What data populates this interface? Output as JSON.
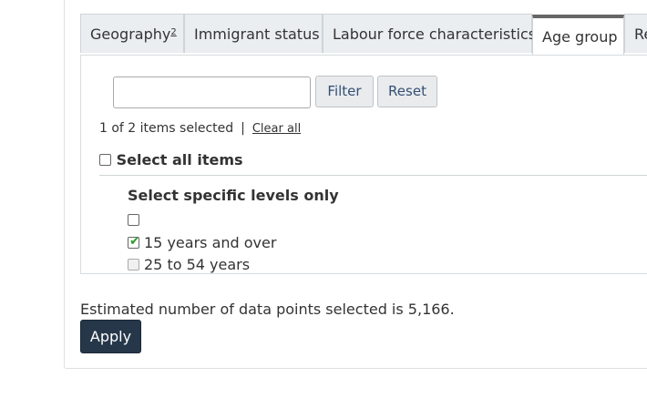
{
  "tabs": [
    {
      "label": "Geography",
      "sup": "2"
    },
    {
      "label": "Immigrant status"
    },
    {
      "label": "Labour force characteristics"
    },
    {
      "label": "Age group"
    },
    {
      "label": "Re"
    }
  ],
  "filter": {
    "input_value": "",
    "filter_label": "Filter",
    "reset_label": "Reset"
  },
  "selection": {
    "status": "1 of 2 items selected",
    "separator": "|",
    "clear_all": "Clear all"
  },
  "select_all": {
    "label": "Select all items",
    "checked": false
  },
  "levels": {
    "heading": "Select specific levels only",
    "items": [
      {
        "label": "",
        "checked": false
      },
      {
        "label": "15 years and over",
        "checked": true
      },
      {
        "label": "25 to 54 years",
        "checked": false,
        "disabled": true
      }
    ]
  },
  "estimate_text": "Estimated number of data points selected is 5,166.",
  "apply_label": "Apply",
  "colors": {
    "check_green": "#2e9c2e",
    "apply_bg": "#26374a",
    "tab_bg": "#eaeef1"
  }
}
